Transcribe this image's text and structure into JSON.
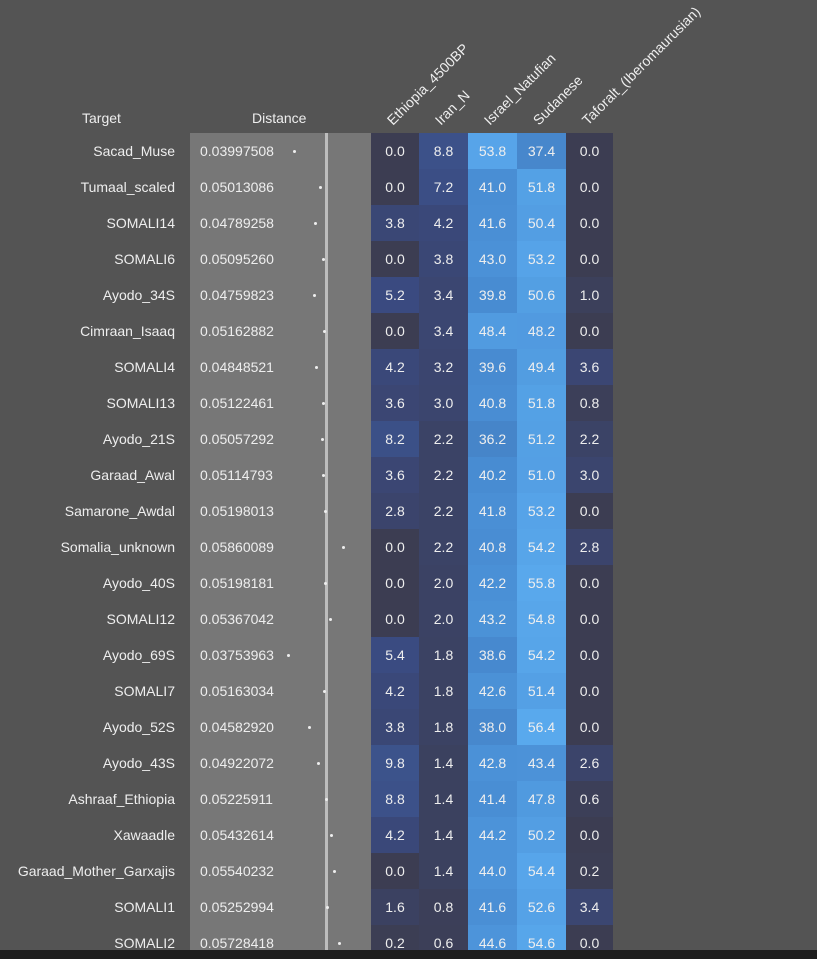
{
  "table": {
    "headers": [
      "Target",
      "Distance",
      "Ethiopia_4500BP",
      "Iran_N",
      "Israel_Natufian",
      "Sudanese",
      "Taforalt_(Iberomaurusian)"
    ],
    "rows": [
      [
        "Sacad_Muse",
        "0.03997508",
        "0.0",
        "8.8",
        "53.8",
        "37.4",
        "0.0"
      ],
      [
        "Tumaal_scaled",
        "0.05013086",
        "0.0",
        "7.2",
        "41.0",
        "51.8",
        "0.0"
      ],
      [
        "SOMALI14",
        "0.04789258",
        "3.8",
        "4.2",
        "41.6",
        "50.4",
        "0.0"
      ],
      [
        "SOMALI6",
        "0.05095260",
        "0.0",
        "3.8",
        "43.0",
        "53.2",
        "0.0"
      ],
      [
        "Ayodo_34S",
        "0.04759823",
        "5.2",
        "3.4",
        "39.8",
        "50.6",
        "1.0"
      ],
      [
        "Cimraan_Isaaq",
        "0.05162882",
        "0.0",
        "3.4",
        "48.4",
        "48.2",
        "0.0"
      ],
      [
        "SOMALI4",
        "0.04848521",
        "4.2",
        "3.2",
        "39.6",
        "49.4",
        "3.6"
      ],
      [
        "SOMALI13",
        "0.05122461",
        "3.6",
        "3.0",
        "40.8",
        "51.8",
        "0.8"
      ],
      [
        "Ayodo_21S",
        "0.05057292",
        "8.2",
        "2.2",
        "36.2",
        "51.2",
        "2.2"
      ],
      [
        "Garaad_Awal",
        "0.05114793",
        "3.6",
        "2.2",
        "40.2",
        "51.0",
        "3.0"
      ],
      [
        "Samarone_Awdal",
        "0.05198013",
        "2.8",
        "2.2",
        "41.8",
        "53.2",
        "0.0"
      ],
      [
        "Somalia_unknown",
        "0.05860089",
        "0.0",
        "2.2",
        "40.8",
        "54.2",
        "2.8"
      ],
      [
        "Ayodo_40S",
        "0.05198181",
        "0.0",
        "2.0",
        "42.2",
        "55.8",
        "0.0"
      ],
      [
        "SOMALI12",
        "0.05367042",
        "0.0",
        "2.0",
        "43.2",
        "54.8",
        "0.0"
      ],
      [
        "Ayodo_69S",
        "0.03753963",
        "5.4",
        "1.8",
        "38.6",
        "54.2",
        "0.0"
      ],
      [
        "SOMALI7",
        "0.05163034",
        "4.2",
        "1.8",
        "42.6",
        "51.4",
        "0.0"
      ],
      [
        "Ayodo_52S",
        "0.04582920",
        "3.8",
        "1.8",
        "38.0",
        "56.4",
        "0.0"
      ],
      [
        "Ayodo_43S",
        "0.04922072",
        "9.8",
        "1.4",
        "42.8",
        "43.4",
        "2.6"
      ],
      [
        "Ashraaf_Ethiopia",
        "0.05225911",
        "8.8",
        "1.4",
        "41.4",
        "47.8",
        "0.6"
      ],
      [
        "Xawaadle",
        "0.05432614",
        "4.2",
        "1.4",
        "44.2",
        "50.2",
        "0.0"
      ],
      [
        "Garaad_Mother_Garxajis",
        "0.05540232",
        "0.0",
        "1.4",
        "44.0",
        "54.4",
        "0.2"
      ],
      [
        "SOMALI1",
        "0.05252994",
        "1.6",
        "0.8",
        "41.6",
        "52.6",
        "3.4"
      ],
      [
        "SOMALI2",
        "0.05728418",
        "0.2",
        "0.6",
        "44.6",
        "54.6",
        "0.0"
      ]
    ]
  }
}
